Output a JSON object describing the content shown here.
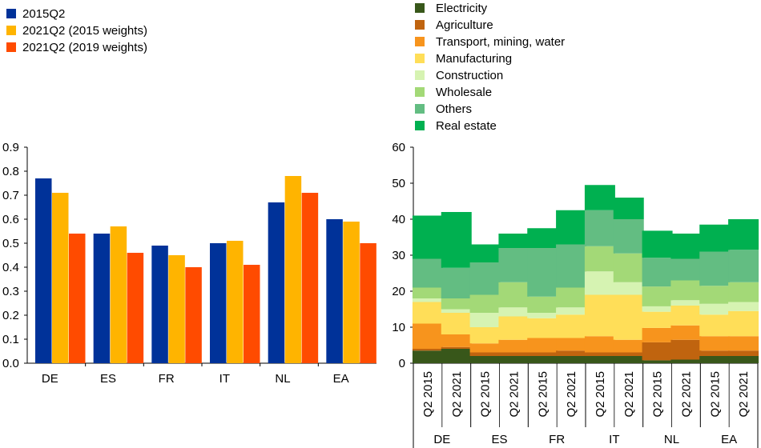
{
  "chart_data": [
    {
      "type": "bar",
      "categories": [
        "DE",
        "ES",
        "FR",
        "IT",
        "NL",
        "EA"
      ],
      "ylim": [
        0,
        0.9
      ],
      "yticks": [
        "0.0",
        "0.1",
        "0.2",
        "0.3",
        "0.4",
        "0.5",
        "0.6",
        "0.7",
        "0.8",
        "0.9"
      ],
      "series": [
        {
          "name": "2015Q2",
          "color": "#003299",
          "values": [
            0.77,
            0.54,
            0.49,
            0.5,
            0.67,
            0.6
          ]
        },
        {
          "name": "2021Q2 (2015 weights)",
          "color": "#FFB400",
          "values": [
            0.71,
            0.57,
            0.45,
            0.51,
            0.78,
            0.59
          ]
        },
        {
          "name": "2021Q2 (2019 weights)",
          "color": "#FF4B00",
          "values": [
            0.54,
            0.46,
            0.4,
            0.41,
            0.71,
            0.5
          ]
        }
      ],
      "grid": false,
      "legend_position": "top-left"
    },
    {
      "type": "bar",
      "stacked": true,
      "groups": [
        "DE",
        "ES",
        "FR",
        "IT",
        "NL",
        "EA"
      ],
      "categories": [
        "Q2 2015",
        "Q2 2021"
      ],
      "ylim": [
        0,
        60
      ],
      "yticks": [
        "0",
        "10",
        "20",
        "30",
        "40",
        "50",
        "60"
      ],
      "series": [
        {
          "name": "Electricity",
          "color": "#38571A",
          "values": [
            [
              3.5,
              4.0
            ],
            [
              2.0,
              2.0
            ],
            [
              2.0,
              2.0
            ],
            [
              2.0,
              2.0
            ],
            [
              0.8,
              1.0
            ],
            [
              2.0,
              2.0
            ]
          ]
        },
        {
          "name": "Agriculture",
          "color": "#C0640F",
          "values": [
            [
              0.5,
              0.5
            ],
            [
              1.0,
              1.0
            ],
            [
              1.0,
              1.5
            ],
            [
              1.0,
              1.0
            ],
            [
              5.0,
              5.5
            ],
            [
              1.5,
              1.5
            ]
          ]
        },
        {
          "name": "Transport, mining, water",
          "color": "#F7941D",
          "values": [
            [
              7.0,
              3.5
            ],
            [
              2.5,
              3.5
            ],
            [
              4.0,
              3.5
            ],
            [
              4.5,
              3.5
            ],
            [
              4.0,
              4.0
            ],
            [
              4.0,
              4.0
            ]
          ]
        },
        {
          "name": "Manufacturing",
          "color": "#FFDE58",
          "values": [
            [
              6.0,
              6.0
            ],
            [
              4.5,
              6.5
            ],
            [
              5.5,
              6.5
            ],
            [
              11.5,
              12.5
            ],
            [
              4.5,
              5.5
            ],
            [
              6.0,
              7.0
            ]
          ]
        },
        {
          "name": "Construction",
          "color": "#D6F3B2",
          "values": [
            [
              1.0,
              1.0
            ],
            [
              4.0,
              2.5
            ],
            [
              1.5,
              2.0
            ],
            [
              6.5,
              3.5
            ],
            [
              1.5,
              1.5
            ],
            [
              3.0,
              2.5
            ]
          ]
        },
        {
          "name": "Wholesale",
          "color": "#A3D977",
          "values": [
            [
              3.0,
              3.0
            ],
            [
              5.0,
              7.0
            ],
            [
              4.5,
              5.5
            ],
            [
              7.0,
              8.0
            ],
            [
              5.5,
              5.5
            ],
            [
              5.0,
              5.5
            ]
          ]
        },
        {
          "name": "Others",
          "color": "#63BD82",
          "values": [
            [
              8.0,
              8.5
            ],
            [
              9.0,
              9.5
            ],
            [
              13.5,
              12.0
            ],
            [
              10.0,
              9.5
            ],
            [
              8.0,
              6.0
            ],
            [
              9.5,
              9.0
            ]
          ]
        },
        {
          "name": "Real estate",
          "color": "#00B050",
          "values": [
            [
              12.0,
              15.5
            ],
            [
              5.0,
              4.0
            ],
            [
              5.5,
              9.5
            ],
            [
              7.0,
              6.0
            ],
            [
              7.5,
              7.0
            ],
            [
              7.5,
              8.5
            ]
          ]
        }
      ],
      "grid": false,
      "legend_position": "top"
    }
  ]
}
